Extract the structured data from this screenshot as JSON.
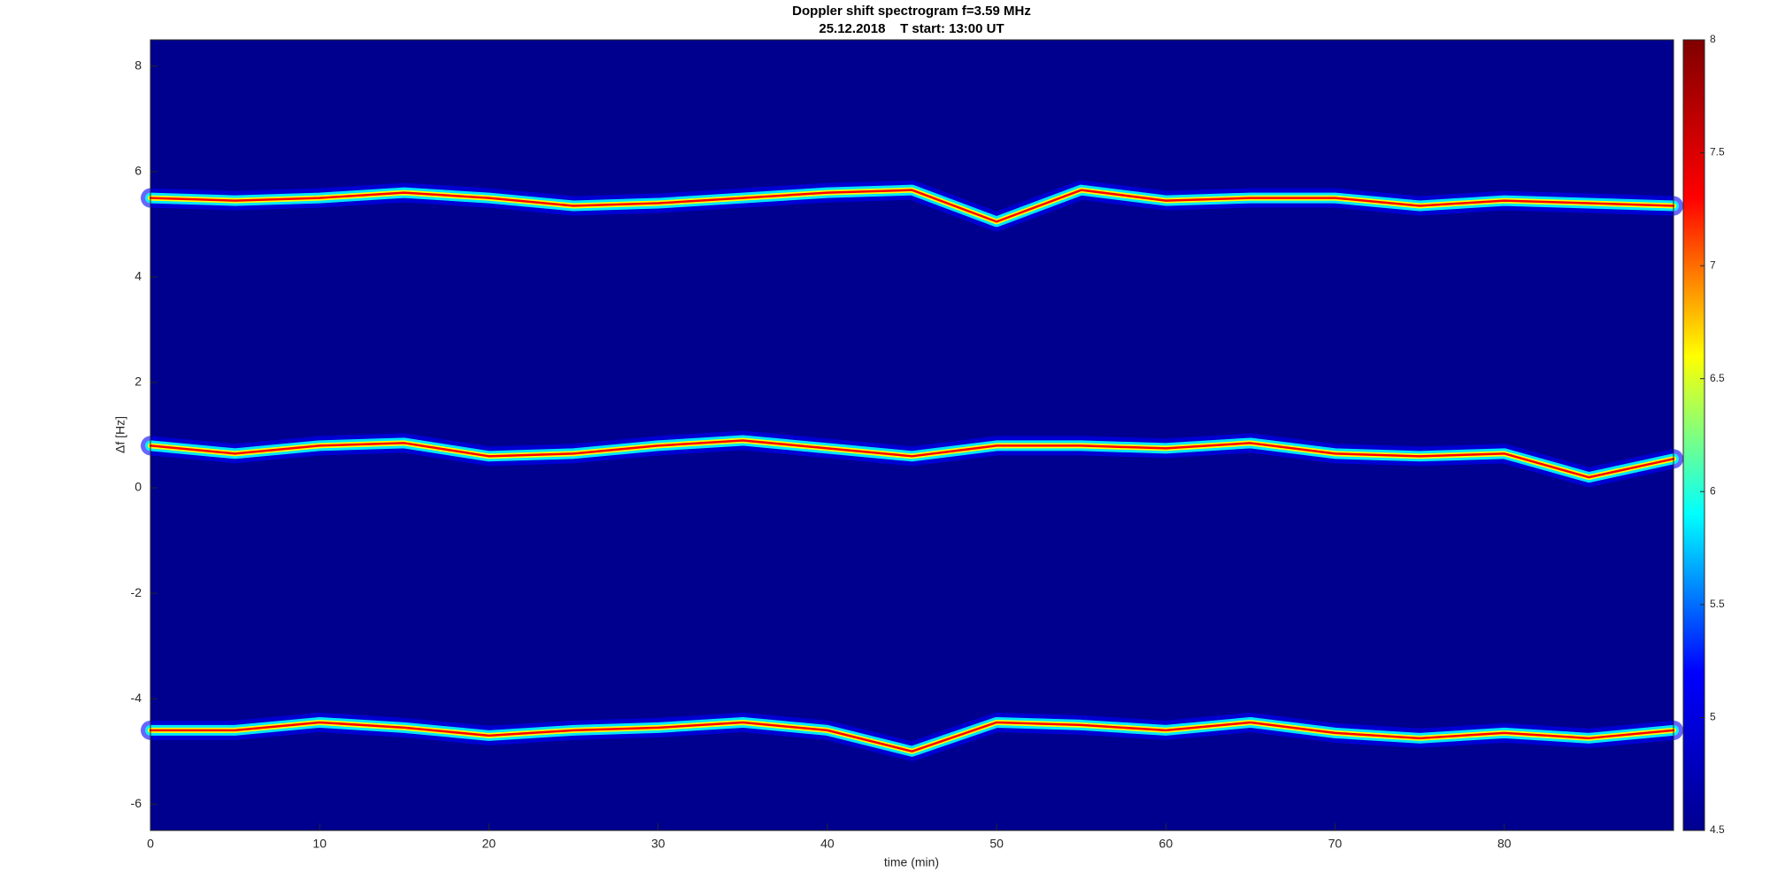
{
  "chart_data": {
    "type": "spectrogram",
    "title": "Doppler shift spectrogram f=3.59 MHz",
    "subtitle": "25.12.2018    T start: 13:00 UT",
    "xlabel": "time (min)",
    "ylabel": "Δf [Hz]",
    "xlim": [
      0,
      90
    ],
    "xticks": [
      0,
      10,
      20,
      30,
      40,
      50,
      60,
      70,
      80
    ],
    "ylim": [
      -6.5,
      8.5
    ],
    "yticks": [
      -6,
      -4,
      -2,
      0,
      2,
      4,
      6,
      8
    ],
    "clim": [
      4.5,
      8
    ],
    "cticks": [
      4.5,
      5,
      5.5,
      6,
      6.5,
      7,
      7.5,
      8
    ],
    "colormap": [
      "#00008f",
      "#0000ff",
      "#00ffff",
      "#ffff00",
      "#ff0000",
      "#800000"
    ],
    "x": [
      0,
      5,
      10,
      15,
      20,
      25,
      30,
      35,
      40,
      45,
      50,
      55,
      60,
      65,
      70,
      75,
      80,
      85,
      90
    ],
    "traces": [
      {
        "values": [
          5.5,
          5.45,
          5.5,
          5.6,
          5.5,
          5.35,
          5.4,
          5.5,
          5.6,
          5.65,
          5.05,
          5.65,
          5.45,
          5.5,
          5.5,
          5.35,
          5.45,
          5.4,
          5.35
        ]
      },
      {
        "values": [
          0.8,
          0.65,
          0.8,
          0.85,
          0.6,
          0.65,
          0.8,
          0.9,
          0.75,
          0.6,
          0.8,
          0.8,
          0.75,
          0.85,
          0.65,
          0.6,
          0.65,
          0.2,
          0.55
        ]
      },
      {
        "values": [
          -4.6,
          -4.6,
          -4.45,
          -4.55,
          -4.7,
          -4.6,
          -4.55,
          -4.45,
          -4.6,
          -5.0,
          -4.45,
          -4.5,
          -4.6,
          -4.45,
          -4.65,
          -4.75,
          -4.65,
          -4.75,
          -4.6
        ]
      }
    ]
  }
}
